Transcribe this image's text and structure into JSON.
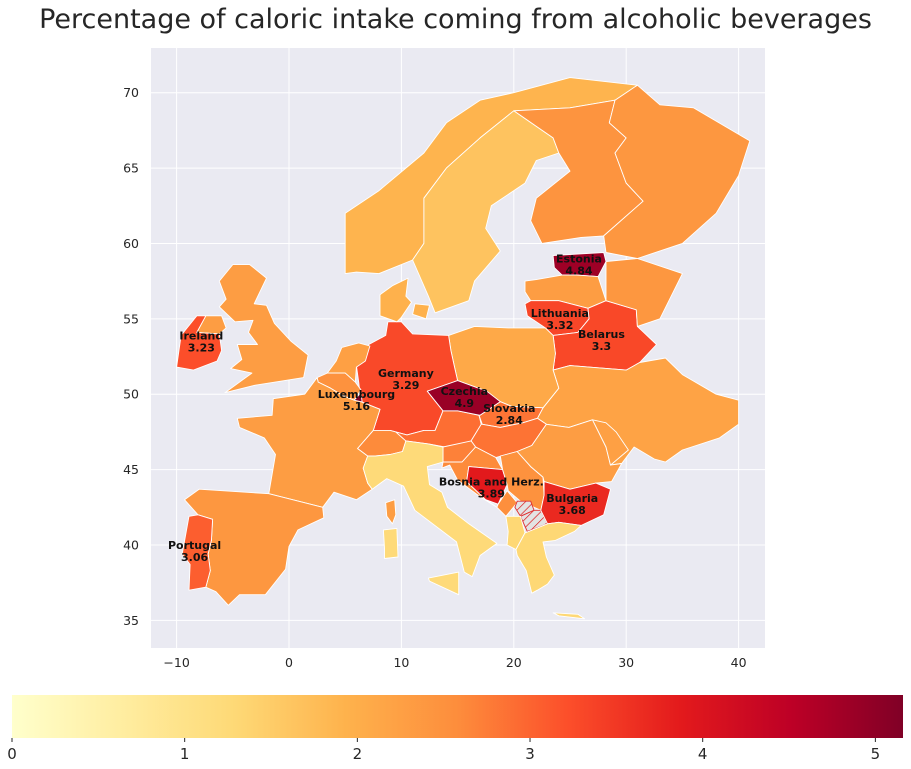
{
  "title": "Percentage of caloric intake coming from alcoholic beverages",
  "chart_data": {
    "type": "choropleth",
    "title": "Percentage of caloric intake coming from alcoholic beverages",
    "x_ticks": [
      -10,
      0,
      10,
      20,
      30,
      40
    ],
    "y_ticks": [
      35,
      40,
      45,
      50,
      55,
      60,
      65,
      70
    ],
    "xlim": [
      -12.5,
      42.5
    ],
    "ylim": [
      33.3,
      73
    ],
    "grid": true,
    "colormap": "YlOrRd",
    "color_range": [
      0,
      5.16
    ],
    "colorbar_ticks": [
      0,
      1,
      2,
      3,
      4,
      5
    ],
    "colorbar_position": "bottom",
    "labeled_countries": [
      {
        "name": "Estonia",
        "value": 4.84,
        "display": "4.84",
        "lon": 25.8,
        "lat": 58.6
      },
      {
        "name": "Lithuania",
        "value": 3.32,
        "display": "3.32",
        "lon": 24.1,
        "lat": 55.0
      },
      {
        "name": "Belarus",
        "value": 3.3,
        "display": "3.3",
        "lon": 27.8,
        "lat": 53.6
      },
      {
        "name": "Ireland",
        "value": 3.23,
        "display": "3.23",
        "lon": -7.8,
        "lat": 53.5
      },
      {
        "name": "Germany",
        "value": 3.29,
        "display": "3.29",
        "lon": 10.4,
        "lat": 51.0
      },
      {
        "name": "Luxembourg",
        "value": 5.16,
        "display": "5.16",
        "lon": 6.0,
        "lat": 49.6
      },
      {
        "name": "Czechia",
        "value": 4.9,
        "display": "4.9",
        "lon": 15.6,
        "lat": 49.8
      },
      {
        "name": "Slovakia",
        "value": 2.84,
        "display": "2.84",
        "lon": 19.6,
        "lat": 48.7
      },
      {
        "name": "Bosnia and Herz.",
        "value": 3.89,
        "display": "3.89",
        "lon": 18.0,
        "lat": 43.8
      },
      {
        "name": "Bulgaria",
        "value": 3.68,
        "display": "3.68",
        "lon": 25.2,
        "lat": 42.7
      },
      {
        "name": "Portugal",
        "value": 3.06,
        "display": "3.06",
        "lon": -8.4,
        "lat": 39.6
      }
    ]
  }
}
